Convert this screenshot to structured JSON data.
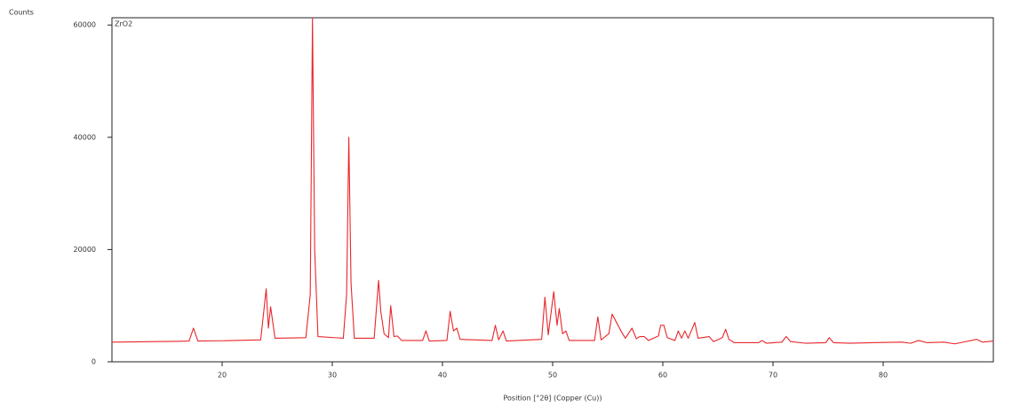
{
  "chart_data": {
    "type": "line",
    "y_label": "Counts",
    "x_label": "Position [°2θ] (Copper (Cu))",
    "x": [
      10,
      12,
      14,
      16,
      17.0,
      17.4,
      17.8,
      20,
      23.5,
      24.0,
      24.2,
      24.4,
      24.8,
      27.6,
      28.0,
      28.2,
      28.4,
      28.7,
      31.0,
      31.3,
      31.5,
      31.7,
      32.0,
      33.8,
      34.2,
      34.4,
      34.7,
      35.1,
      35.3,
      35.6,
      35.9,
      36.3,
      38.2,
      38.5,
      38.8,
      40.4,
      40.7,
      41.0,
      41.3,
      41.6,
      44.5,
      44.8,
      45.1,
      45.5,
      45.8,
      49.0,
      49.3,
      49.6,
      50.1,
      50.4,
      50.6,
      50.9,
      51.2,
      51.5,
      53.8,
      54.1,
      54.4,
      55.1,
      55.4,
      55.8,
      56.2,
      56.6,
      57.2,
      57.6,
      57.9,
      58.3,
      58.7,
      59.6,
      59.8,
      60.1,
      60.4,
      61.1,
      61.4,
      61.7,
      62.0,
      62.3,
      62.9,
      63.2,
      64.2,
      64.6,
      65.4,
      65.7,
      66.0,
      66.5,
      68.7,
      69.0,
      69.4,
      70.8,
      71.2,
      71.6,
      73.0,
      74.8,
      75.1,
      75.5,
      77.0,
      79.0,
      81.7,
      82.5,
      83.2,
      84.0,
      85.5,
      86.5,
      88.5,
      89.0,
      89.5,
      90
    ],
    "series": [
      {
        "name": "ZrO2",
        "color": "#e8262a",
        "values": [
          3500,
          3550,
          3600,
          3650,
          3700,
          6000,
          3700,
          3750,
          3900,
          13000,
          6000,
          9800,
          4200,
          4300,
          12000,
          61300,
          20000,
          4500,
          4200,
          12000,
          40000,
          14000,
          4200,
          4200,
          14500,
          9000,
          5000,
          4300,
          10000,
          4500,
          4600,
          3800,
          3800,
          5500,
          3700,
          3800,
          9000,
          5500,
          6000,
          4000,
          3800,
          6500,
          3900,
          5500,
          3700,
          4000,
          11500,
          4800,
          12500,
          6500,
          9500,
          5000,
          5500,
          3800,
          3800,
          8000,
          3900,
          5000,
          8500,
          7000,
          5500,
          4200,
          6000,
          4100,
          4500,
          4500,
          3800,
          4600,
          6500,
          6500,
          4300,
          3800,
          5500,
          4200,
          5500,
          4200,
          7000,
          4200,
          4500,
          3600,
          4300,
          5800,
          4000,
          3400,
          3400,
          3800,
          3300,
          3500,
          4500,
          3600,
          3300,
          3400,
          4300,
          3400,
          3300,
          3400,
          3500,
          3300,
          3800,
          3400,
          3500,
          3200,
          4000,
          3500,
          3600,
          3700
        ]
      }
    ],
    "xlim": [
      10,
      90
    ],
    "xticks": [
      20,
      30,
      40,
      50,
      60,
      70,
      80
    ],
    "ylim": [
      0,
      61300
    ],
    "yticks": [
      0,
      20000,
      40000,
      60000
    ]
  }
}
